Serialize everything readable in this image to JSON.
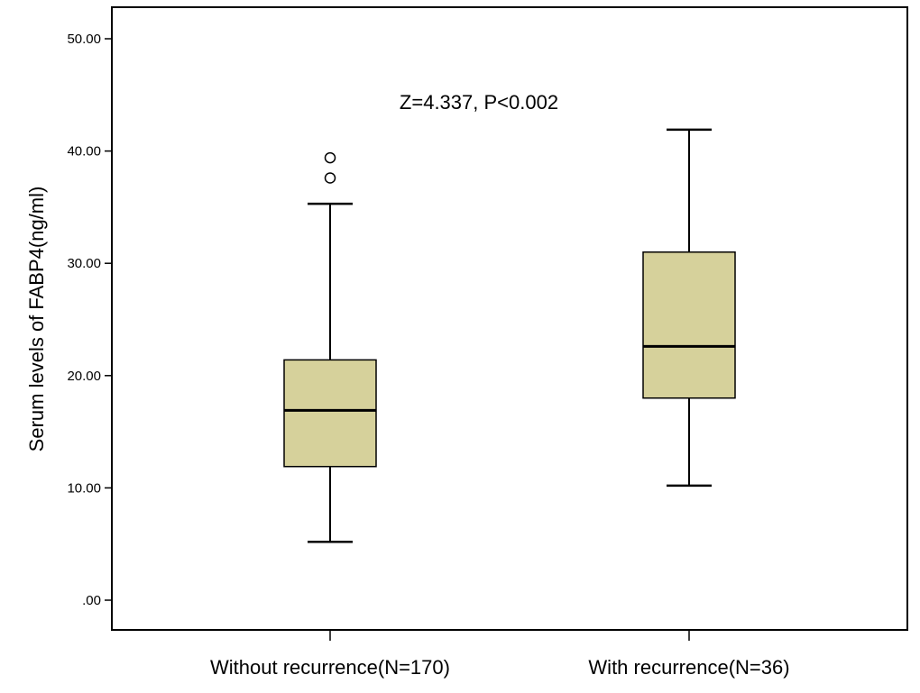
{
  "chart_data": {
    "type": "box",
    "ylabel": "Serum levels of FABP4(ng/ml)",
    "xlabel": "",
    "ylim": [
      0,
      50
    ],
    "yticks": [
      0,
      10,
      20,
      30,
      40,
      50
    ],
    "ytick_labels": [
      ".00",
      "10.00",
      "20.00",
      "30.00",
      "40.00",
      "50.00"
    ],
    "annotation": "Z=4.337, P<0.002",
    "grid": false,
    "box_color": "#d6d19b",
    "categories": [
      "Without recurrence(N=170)",
      "With recurrence(N=36)"
    ],
    "groups": [
      {
        "category": "Without recurrence(N=170)",
        "min": 5.2,
        "q1": 11.9,
        "median": 16.9,
        "q3": 21.4,
        "max": 35.3,
        "outliers": [
          37.6,
          39.4
        ]
      },
      {
        "category": "With recurrence(N=36)",
        "min": 10.2,
        "q1": 18.0,
        "median": 22.6,
        "q3": 31.0,
        "max": 41.9,
        "outliers": []
      }
    ]
  }
}
